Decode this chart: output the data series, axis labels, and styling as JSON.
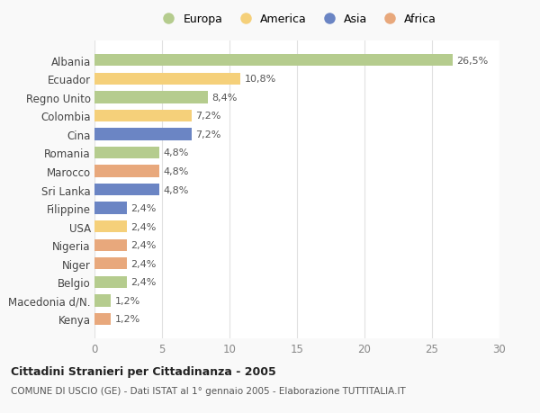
{
  "countries": [
    "Albania",
    "Ecuador",
    "Regno Unito",
    "Colombia",
    "Cina",
    "Romania",
    "Marocco",
    "Sri Lanka",
    "Filippine",
    "USA",
    "Nigeria",
    "Niger",
    "Belgio",
    "Macedonia d/N.",
    "Kenya"
  ],
  "values": [
    26.5,
    10.8,
    8.4,
    7.2,
    7.2,
    4.8,
    4.8,
    4.8,
    2.4,
    2.4,
    2.4,
    2.4,
    2.4,
    1.2,
    1.2
  ],
  "labels": [
    "26,5%",
    "10,8%",
    "8,4%",
    "7,2%",
    "7,2%",
    "4,8%",
    "4,8%",
    "4,8%",
    "2,4%",
    "2,4%",
    "2,4%",
    "2,4%",
    "2,4%",
    "1,2%",
    "1,2%"
  ],
  "regions": [
    "Europa",
    "America",
    "Europa",
    "America",
    "Asia",
    "Europa",
    "Africa",
    "Asia",
    "Asia",
    "America",
    "Africa",
    "Africa",
    "Europa",
    "Europa",
    "Africa"
  ],
  "colors": {
    "Europa": "#b5cc8e",
    "America": "#f5d07a",
    "Asia": "#6b85c4",
    "Africa": "#e8a87c"
  },
  "legend_order": [
    "Europa",
    "America",
    "Asia",
    "Africa"
  ],
  "xlim": [
    0,
    30
  ],
  "xticks": [
    0,
    5,
    10,
    15,
    20,
    25,
    30
  ],
  "title": "Cittadini Stranieri per Cittadinanza - 2005",
  "subtitle": "COMUNE DI USCIO (GE) - Dati ISTAT al 1° gennaio 2005 - Elaborazione TUTTITALIA.IT",
  "bg_color": "#f9f9f9",
  "plot_bg_color": "#ffffff",
  "grid_color": "#e0e0e0"
}
